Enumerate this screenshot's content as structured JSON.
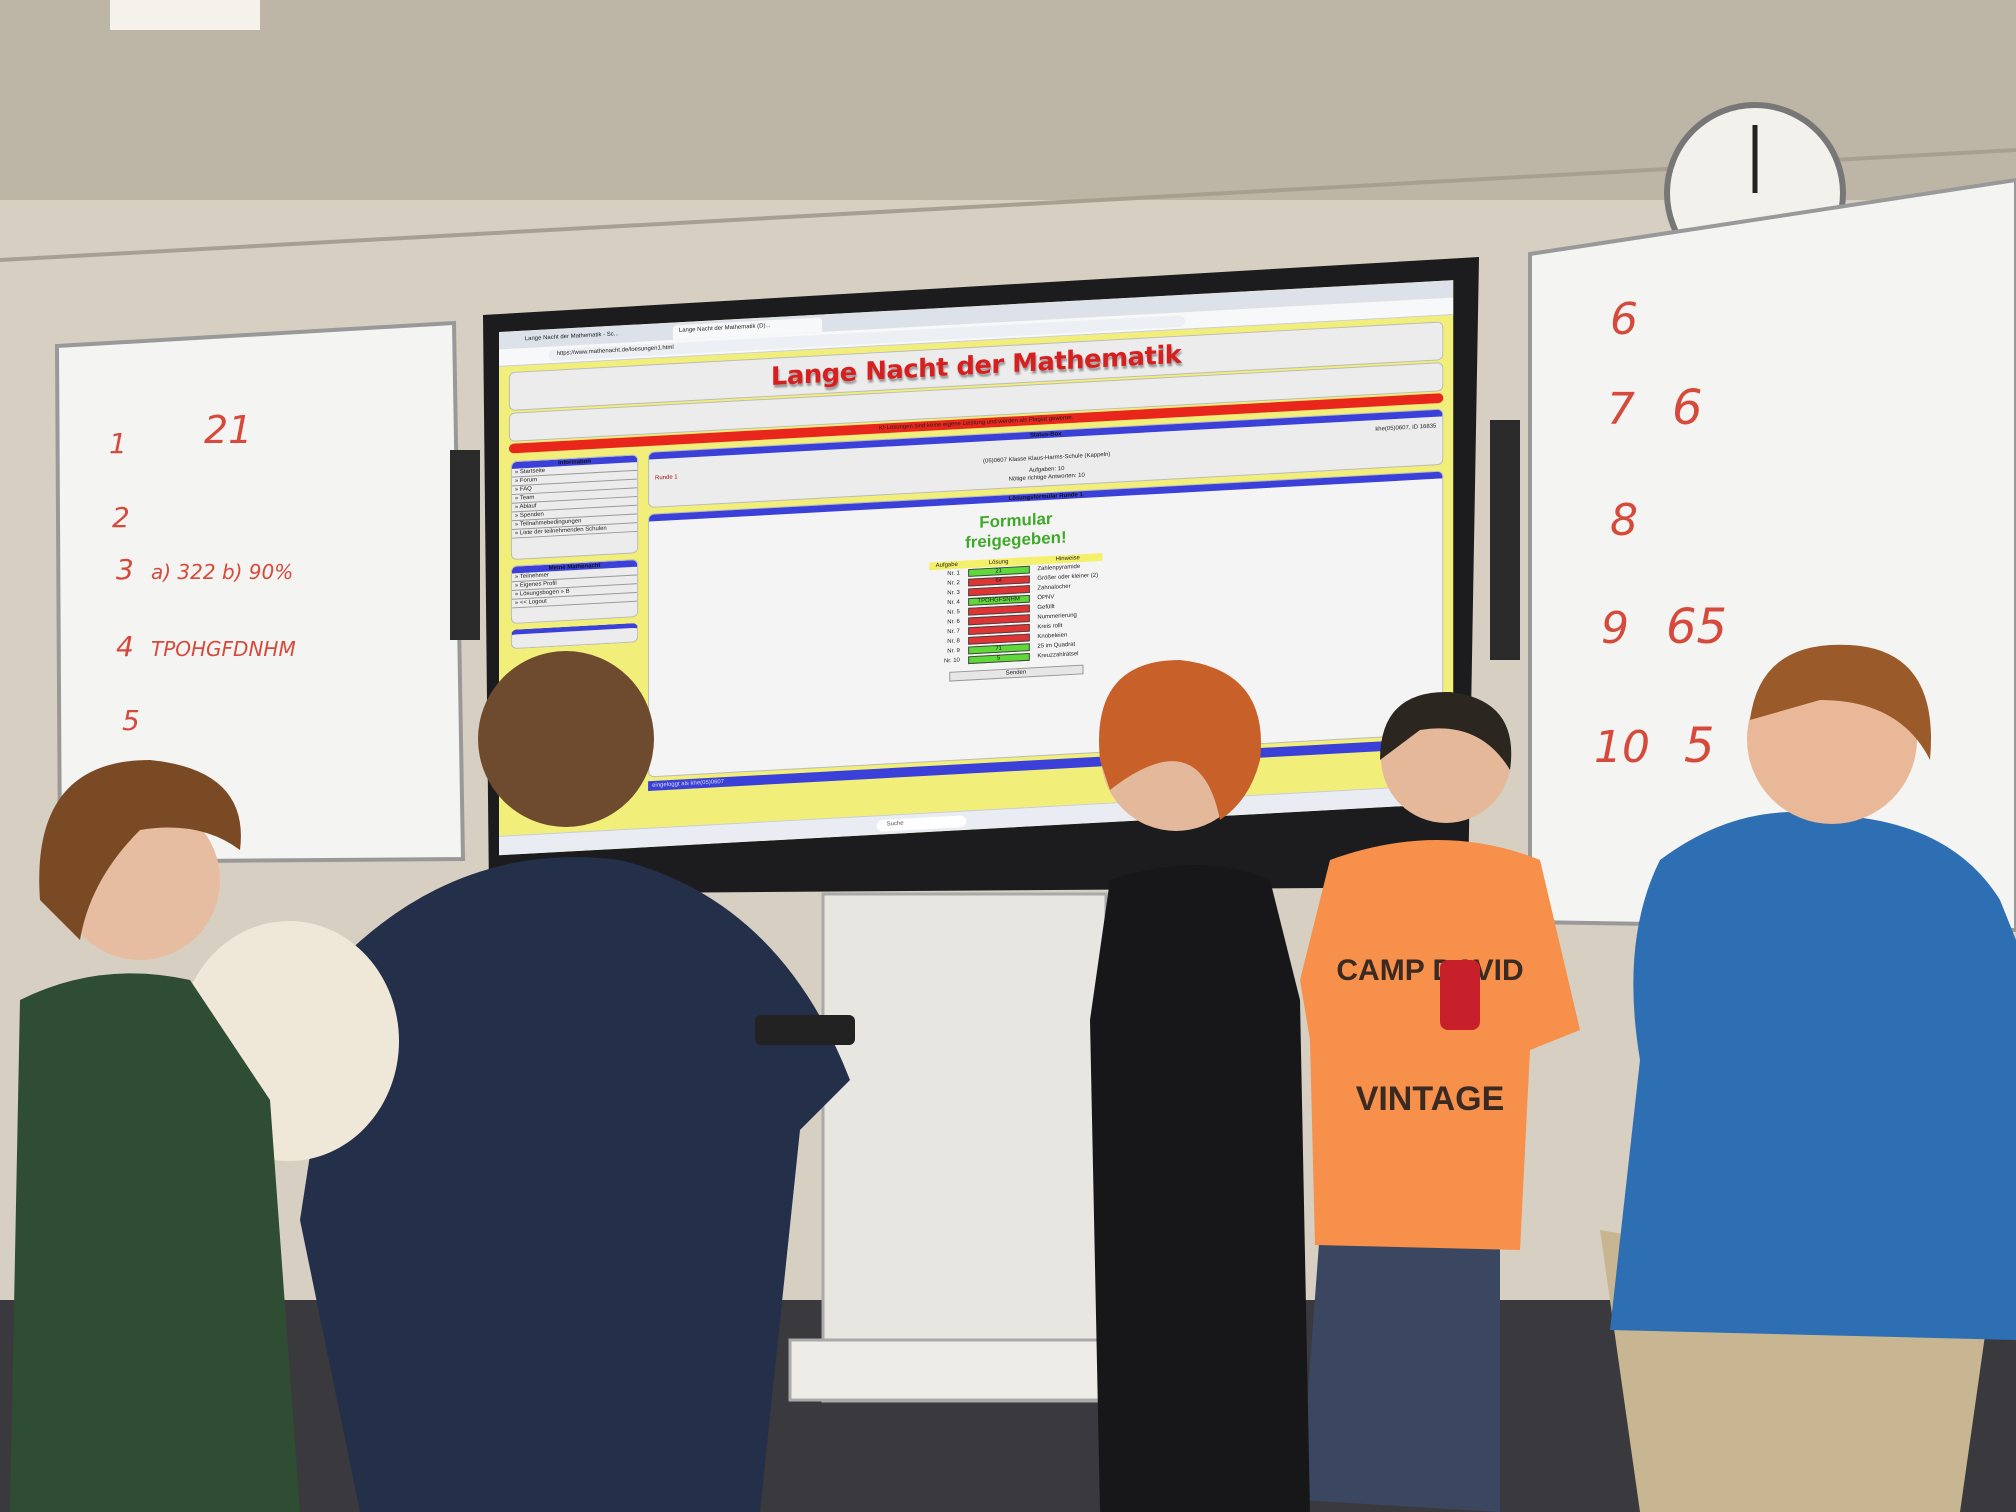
{
  "browser": {
    "tabs": [
      "Lange Nacht der Mathematik - Sc...",
      "Lange Nacht der Mathematik (D)..."
    ],
    "url": "https://www.mathenacht.de/loesungen1.html"
  },
  "site": {
    "title": "Lange Nacht der Mathematik",
    "banner": "KI-Lösungen sind keine eigene Leistung und werden als Plagiat gewertet.",
    "sidebar": {
      "info_title": "Information",
      "info_items": [
        "» Startseite",
        "» Forum",
        "» FAQ",
        "» Team",
        "» Ablauf",
        "» Spenden",
        "» Teilnahmebedingungen",
        "» Liste der teilnehmenden Schulen"
      ],
      "my_title": "Meine Mathenacht",
      "my_items": [
        "» Teilnehmer",
        "» Eigenes Profil",
        "» Lösungsbogen » B",
        "» << Logout"
      ]
    },
    "status": {
      "title": "Status-Box",
      "user_id": "khe(05)0607, ID 16835",
      "round": "Runde 1",
      "school": "(05)0607 Klasse Klaus-Harms-Schule (Kappeln)",
      "tasks": "Aufgaben: 10",
      "needed": "Nötige richtige Antworten: 10"
    },
    "form": {
      "title": "Lösungsformular Runde 1",
      "released": "Formular freigegeben!",
      "headers": [
        "Aufgabe",
        "Lösung",
        "Hinweise"
      ],
      "rows": [
        {
          "task": "Nr. 1",
          "solution": "21",
          "hint": "Zahlenpyramide",
          "color": "#5fd83a"
        },
        {
          "task": "Nr. 2",
          "solution": "64",
          "hint": "Größer oder kleiner (2)",
          "color": "#e03434"
        },
        {
          "task": "Nr. 3",
          "hint": "Zahnalocher",
          "color": "#e03434"
        },
        {
          "task": "Nr. 4",
          "solution": "TPOHGFSNHM",
          "hint": "ÖPNV",
          "color": "#5fd83a"
        },
        {
          "task": "Nr. 5",
          "hint": "Gefüllt",
          "color": "#e03434"
        },
        {
          "task": "Nr. 6",
          "hint": "Nummerierung",
          "color": "#e03434"
        },
        {
          "task": "Nr. 7",
          "hint": "Kreis rollt",
          "color": "#e03434"
        },
        {
          "task": "Nr. 8",
          "hint": "Knobeleien",
          "color": "#e03434"
        },
        {
          "task": "Nr. 9",
          "solution": "71",
          "hint": "25 im Quadrat",
          "color": "#5fd83a"
        },
        {
          "task": "Nr. 10",
          "solution": "5",
          "hint": "Kreuzzahlrätsel",
          "color": "#5fd83a"
        }
      ],
      "submit": "Senden"
    },
    "footer": "eingeloggt als khe(05)0607"
  },
  "taskbar": {
    "search": "Suche"
  },
  "whiteboard_left": [
    {
      "num": "1",
      "answer": "21"
    },
    {
      "num": "2"
    },
    {
      "num": "3",
      "answer": "a) 322  b) 90%"
    },
    {
      "num": "4",
      "answer": "TPOHGFDNHM"
    },
    {
      "num": "5"
    }
  ],
  "whiteboard_right": [
    {
      "num": "6"
    },
    {
      "num": "7",
      "answer": "6"
    },
    {
      "num": "8"
    },
    {
      "num": "9",
      "answer": "65"
    },
    {
      "num": "10",
      "answer": "5"
    }
  ],
  "shirt_text": [
    "CAMP DAVID",
    "VINTAGE"
  ]
}
